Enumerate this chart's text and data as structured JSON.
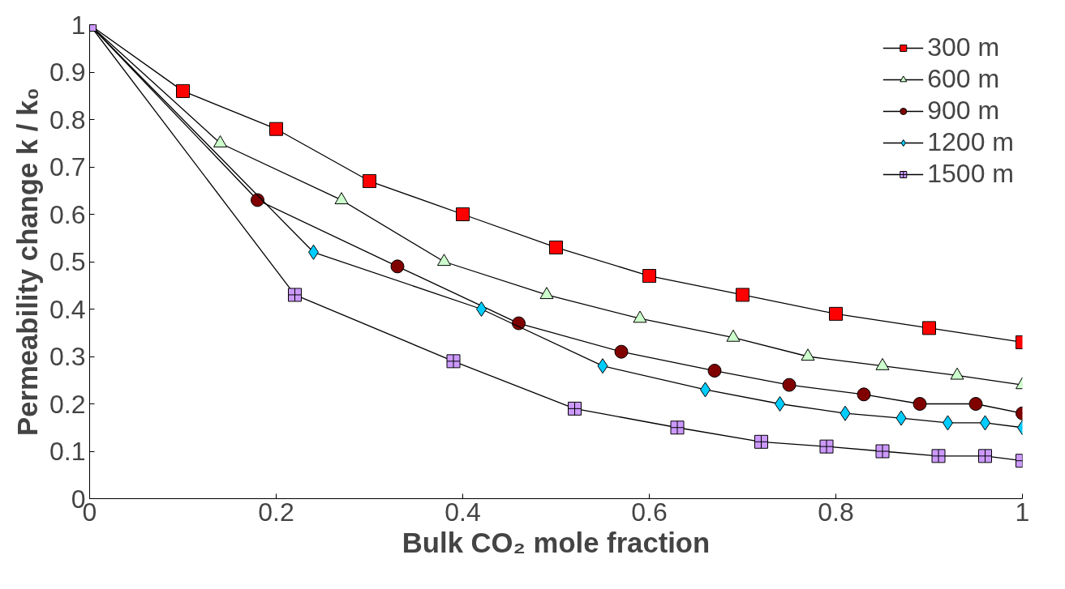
{
  "chart_data": {
    "type": "line",
    "xlabel": "Bulk CO₂ mole fraction",
    "ylabel": "Permeability change k / k₀",
    "xlim": [
      0,
      1
    ],
    "xticks": [
      0,
      0.2,
      0.4,
      0.6,
      0.8,
      1
    ],
    "ylim": [
      0,
      1
    ],
    "yticks": [
      0,
      0.1,
      0.2,
      0.3,
      0.4,
      0.5,
      0.6,
      0.7,
      0.8,
      0.9,
      1
    ],
    "grid": false,
    "legend": "top right",
    "line_style": "solid",
    "series": [
      {
        "name": "300 m",
        "color": "#ff0000",
        "marker": "square",
        "x": [
          0,
          0.1,
          0.2,
          0.3,
          0.4,
          0.5,
          0.6,
          0.7,
          0.8,
          0.9,
          1
        ],
        "values": [
          1,
          0.86,
          0.78,
          0.67,
          0.6,
          0.53,
          0.47,
          0.43,
          0.39,
          0.36,
          0.33
        ]
      },
      {
        "name": "600 m",
        "color": "#ccffcc",
        "marker": "triangle",
        "x": [
          0,
          0.14,
          0.27,
          0.38,
          0.49,
          0.59,
          0.69,
          0.77,
          0.85,
          0.93,
          1
        ],
        "values": [
          1,
          0.75,
          0.63,
          0.5,
          0.43,
          0.38,
          0.34,
          0.3,
          0.28,
          0.26,
          0.24
        ]
      },
      {
        "name": "900 m",
        "color": "#800000",
        "marker": "circle",
        "x": [
          0,
          0.18,
          0.33,
          0.46,
          0.57,
          0.67,
          0.75,
          0.83,
          0.89,
          0.95,
          1
        ],
        "values": [
          1,
          0.63,
          0.49,
          0.37,
          0.31,
          0.27,
          0.24,
          0.22,
          0.2,
          0.2,
          0.18
        ]
      },
      {
        "name": "1200 m",
        "color": "#00ccff",
        "marker": "diamond",
        "x": [
          0,
          0.24,
          0.42,
          0.55,
          0.66,
          0.74,
          0.81,
          0.87,
          0.92,
          0.96,
          1
        ],
        "values": [
          1,
          0.52,
          0.4,
          0.28,
          0.23,
          0.2,
          0.18,
          0.17,
          0.16,
          0.16,
          0.15
        ]
      },
      {
        "name": "1500 m",
        "color": "#cc99ff",
        "marker": "cross",
        "x": [
          0,
          0.22,
          0.39,
          0.52,
          0.63,
          0.72,
          0.79,
          0.85,
          0.91,
          0.96,
          1
        ],
        "values": [
          1,
          0.43,
          0.29,
          0.19,
          0.15,
          0.12,
          0.11,
          0.1,
          0.09,
          0.09,
          0.08
        ]
      }
    ]
  }
}
